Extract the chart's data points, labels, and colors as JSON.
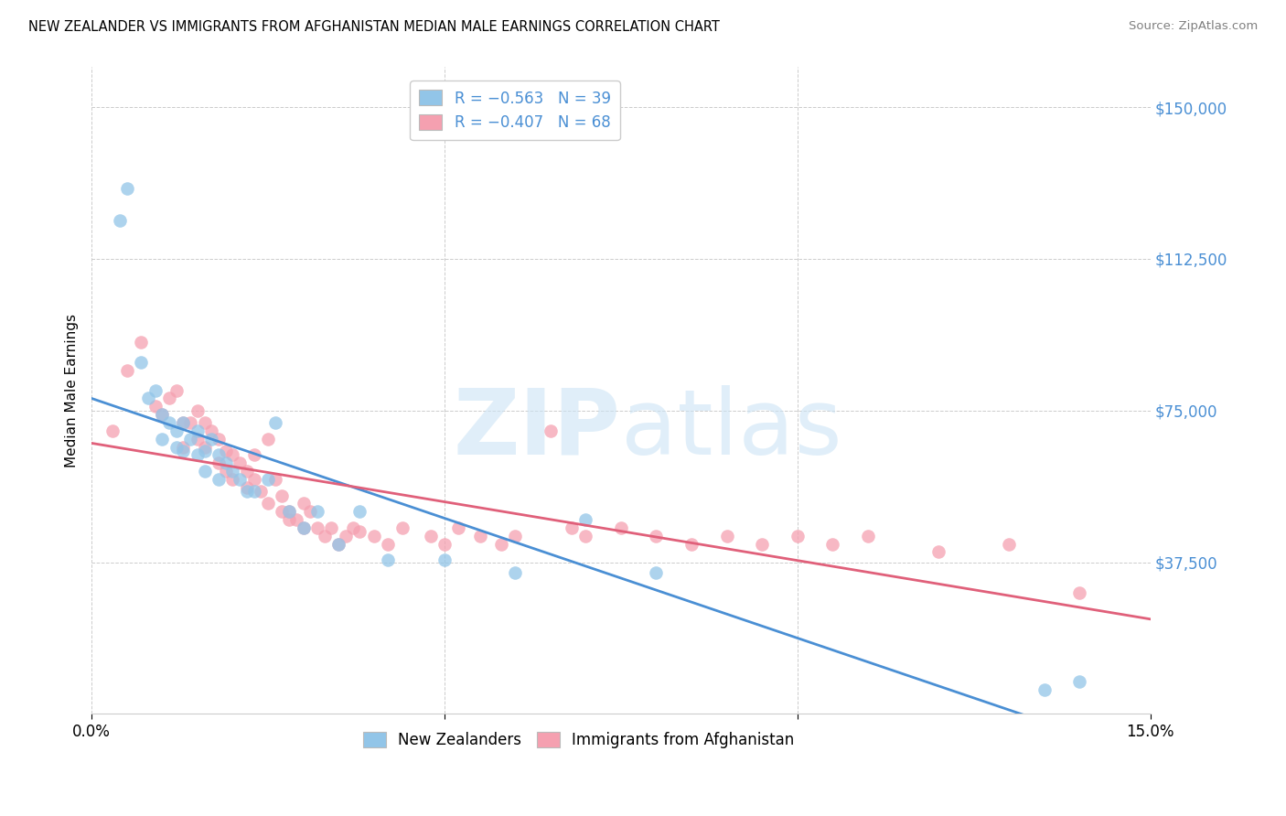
{
  "title": "NEW ZEALANDER VS IMMIGRANTS FROM AFGHANISTAN MEDIAN MALE EARNINGS CORRELATION CHART",
  "source": "Source: ZipAtlas.com",
  "ylabel": "Median Male Earnings",
  "ytick_labels": [
    "$150,000",
    "$112,500",
    "$75,000",
    "$37,500",
    ""
  ],
  "ytick_values": [
    150000,
    112500,
    75000,
    37500,
    0
  ],
  "xmin": 0.0,
  "xmax": 0.15,
  "ymin": 0,
  "ymax": 160000,
  "color_nz": "#92C5E8",
  "color_af": "#F5A0B0",
  "line_color_nz": "#4A8FD4",
  "line_color_af": "#E0607A",
  "legend_label_nz": "R = −0.563   N = 39",
  "legend_label_af": "R = −0.407   N = 68",
  "legend_label_nz_bottom": "New Zealanders",
  "legend_label_af_bottom": "Immigrants from Afghanistan",
  "nz_x": [
    0.004,
    0.005,
    0.007,
    0.008,
    0.009,
    0.01,
    0.01,
    0.011,
    0.012,
    0.012,
    0.013,
    0.013,
    0.014,
    0.015,
    0.015,
    0.016,
    0.016,
    0.017,
    0.018,
    0.018,
    0.019,
    0.02,
    0.021,
    0.022,
    0.023,
    0.025,
    0.026,
    0.028,
    0.03,
    0.032,
    0.035,
    0.038,
    0.042,
    0.05,
    0.06,
    0.07,
    0.08,
    0.135,
    0.14
  ],
  "nz_y": [
    122000,
    130000,
    87000,
    78000,
    80000,
    74000,
    68000,
    72000,
    70000,
    66000,
    72000,
    65000,
    68000,
    70000,
    64000,
    65000,
    60000,
    68000,
    64000,
    58000,
    62000,
    60000,
    58000,
    55000,
    55000,
    58000,
    72000,
    50000,
    46000,
    50000,
    42000,
    50000,
    38000,
    38000,
    35000,
    48000,
    35000,
    6000,
    8000
  ],
  "af_x": [
    0.003,
    0.005,
    0.007,
    0.009,
    0.01,
    0.011,
    0.012,
    0.013,
    0.013,
    0.014,
    0.015,
    0.015,
    0.016,
    0.016,
    0.017,
    0.018,
    0.018,
    0.019,
    0.019,
    0.02,
    0.02,
    0.021,
    0.022,
    0.022,
    0.023,
    0.023,
    0.024,
    0.025,
    0.025,
    0.026,
    0.027,
    0.027,
    0.028,
    0.028,
    0.029,
    0.03,
    0.03,
    0.031,
    0.032,
    0.033,
    0.034,
    0.035,
    0.036,
    0.037,
    0.038,
    0.04,
    0.042,
    0.044,
    0.048,
    0.05,
    0.052,
    0.055,
    0.058,
    0.06,
    0.065,
    0.068,
    0.07,
    0.075,
    0.08,
    0.085,
    0.09,
    0.095,
    0.1,
    0.105,
    0.11,
    0.12,
    0.13,
    0.14
  ],
  "af_y": [
    70000,
    85000,
    92000,
    76000,
    74000,
    78000,
    80000,
    72000,
    66000,
    72000,
    75000,
    68000,
    72000,
    66000,
    70000,
    68000,
    62000,
    65000,
    60000,
    64000,
    58000,
    62000,
    60000,
    56000,
    58000,
    64000,
    55000,
    52000,
    68000,
    58000,
    54000,
    50000,
    50000,
    48000,
    48000,
    52000,
    46000,
    50000,
    46000,
    44000,
    46000,
    42000,
    44000,
    46000,
    45000,
    44000,
    42000,
    46000,
    44000,
    42000,
    46000,
    44000,
    42000,
    44000,
    70000,
    46000,
    44000,
    46000,
    44000,
    42000,
    44000,
    42000,
    44000,
    42000,
    44000,
    40000,
    42000,
    30000
  ]
}
